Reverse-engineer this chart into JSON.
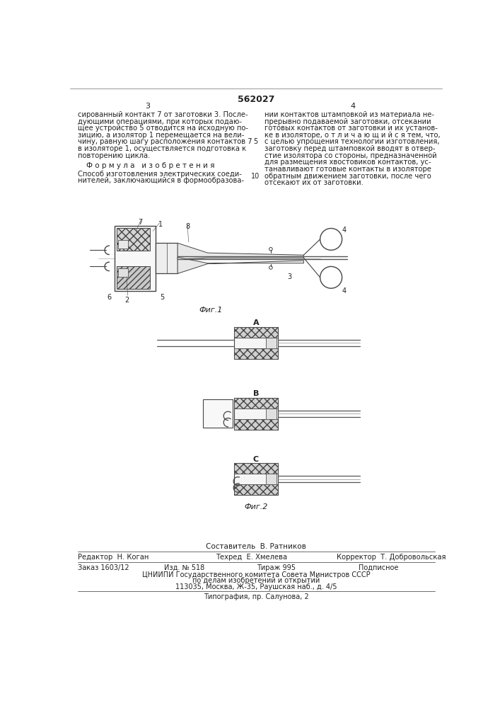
{
  "patent_number": "562027",
  "page_left": "3",
  "page_right": "4",
  "left_lines": [
    "сированный контакт 7 от заготовки 3. После-",
    "дующими операциями, при которых подаю-",
    "щее устройство 5 отводится на исходную по-",
    "зицию, а изолятор 1 перемещается на вели-",
    "чину, равную шагу расположения контактов 7",
    "в изоляторе 1, осуществляется подготовка к",
    "повторению цикла."
  ],
  "formula_title": "Ф о р м у л а   и з о б р е т е н и я",
  "formula_lines": [
    "Способ изготовления электрических соеди-",
    "нителей, заключающийся в формообразова-"
  ],
  "right_lines": [
    "нии контактов штамповкой из материала не-",
    "прерывно подаваемой заготовки, отсекании",
    "готовых контактов от заготовки и их установ-",
    "ке в изоляторе, о т л и ч а ю щ и й с я тем, что,",
    "с целью упрощения технологии изготовления,",
    "заготовку перед штамповкой вводят в отвер-",
    "стие изолятора со стороны, предназначенной",
    "для размещения хвостовиков контактов, ус-",
    "танавливают готовые контакты в изоляторе",
    "обратным движением заготовки, после чего",
    "отсекают их от заготовки."
  ],
  "fig1_caption": "Фиг.1",
  "fig2_caption": "Фиг.2",
  "footer_compiler_label": "Составитель",
  "footer_compiler_name": "В. Ратников",
  "footer_editor_label": "Редактор",
  "footer_editor_name": "Н. Коган",
  "footer_tech_label": "Техред",
  "footer_tech_name": "Е. Хмелева",
  "footer_corrector_label": "Корректор",
  "footer_corrector_name": "Т. Добровольская",
  "footer_order": "Заказ 1603/12",
  "footer_issue": "Изд. № 518",
  "footer_print": "Тираж 995",
  "footer_subscription": "Подписное",
  "footer_org": "ЦНИИПИ Государственного комитета Совета Министров СССР",
  "footer_dept": "по делам изобретений и открытий",
  "footer_address": "113035, Москва, Ж-35, Раушская наб., д. 4/5",
  "footer_print_house": "Типография, пр. Салунова, 2",
  "bg_color": "#ffffff",
  "text_color": "#222222",
  "line_color": "#444444"
}
